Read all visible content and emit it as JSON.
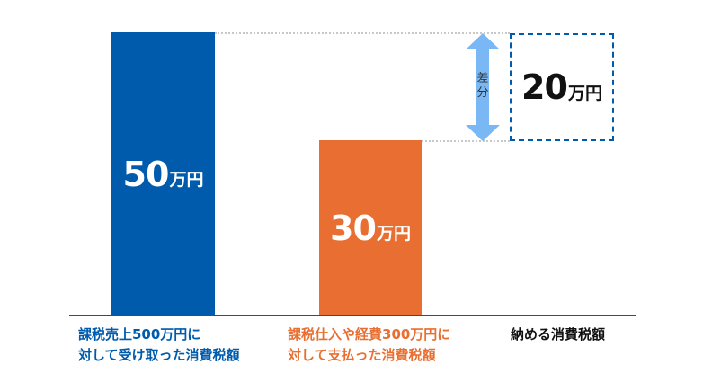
{
  "colors": {
    "received": "#005bac",
    "paid": "#e86f31",
    "difference_arrow": "#7ab8f5",
    "text": "#111111"
  },
  "bars": [
    {
      "value": "50",
      "unit": "万円",
      "label_line1": "課税売上500万円に",
      "label_line2": "対して受け取った消費税額"
    },
    {
      "value": "30",
      "unit": "万円",
      "label_line1": "課税仕入や経費300万円に",
      "label_line2": "対して支払った消費税額"
    }
  ],
  "difference": {
    "arrow_label": "差分",
    "value": "20",
    "unit": "万円",
    "label": "納める消費税額"
  }
}
